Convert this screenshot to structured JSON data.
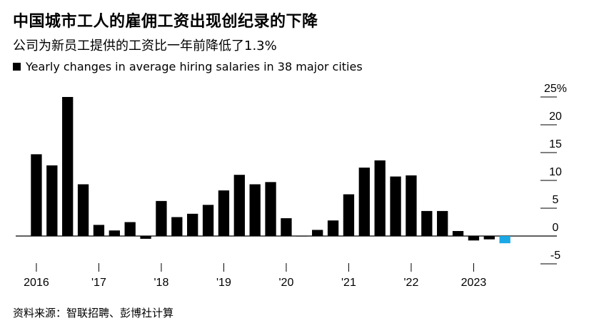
{
  "header": {
    "title": "中国城市工人的雇佣工资出现创纪录的下降",
    "subtitle": "公司为新员工提供的工资比一年前降低了1.3%",
    "legend_label": "Yearly changes in average hiring salaries in 38 major cities"
  },
  "footer": {
    "source": "资料来源：智联招聘、彭博社计算"
  },
  "colors": {
    "bar": "#000000",
    "highlight": "#1aa9e6",
    "axis": "#000000",
    "tick": "#000000"
  },
  "chart_data": {
    "type": "bar",
    "title": "中国城市工人的雇佣工资出现创纪录的下降",
    "subtitle": "公司为新员工提供的工资比一年前降低了1.3%",
    "series": [
      {
        "name": "Yearly changes in average hiring salaries in 38 major cities",
        "values": [
          14.7,
          12.7,
          25.0,
          9.3,
          2.0,
          1.0,
          2.5,
          -0.5,
          6.3,
          3.4,
          4.0,
          5.6,
          8.2,
          11.0,
          9.3,
          9.7,
          3.2,
          0.0,
          1.1,
          2.8,
          7.5,
          12.3,
          13.6,
          10.7,
          10.9,
          4.5,
          4.5,
          0.9,
          -0.8,
          -0.6,
          -1.3
        ]
      }
    ],
    "highlight_last": true,
    "x_tick_labels": [
      "2016",
      "'17",
      "'18",
      "'19",
      "'20",
      "'21",
      "'22",
      "2023"
    ],
    "y_ticks": [
      "25%",
      "20",
      "15",
      "10",
      "5",
      "0",
      "-5"
    ],
    "ylim": [
      -5,
      25
    ],
    "xlabel": "",
    "ylabel": "",
    "y_axis_position": "right",
    "grid": false
  }
}
